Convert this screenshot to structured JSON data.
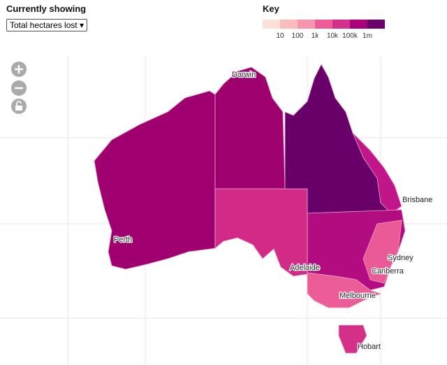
{
  "controls": {
    "label": "Currently showing",
    "select": "Total hectares lost"
  },
  "key": {
    "title": "Key",
    "labels": [
      "10",
      "100",
      "1k",
      "10k",
      "100k",
      "1m"
    ],
    "colors": [
      "#fde0dc",
      "#fbbcbc",
      "#f794ae",
      "#ec5d98",
      "#d4308a",
      "#a9007a",
      "#6b006c"
    ]
  },
  "cities": [
    {
      "name": "Darwin"
    },
    {
      "name": "Brisbane"
    },
    {
      "name": "Perth"
    },
    {
      "name": "Sydney"
    },
    {
      "name": "Adelaide"
    },
    {
      "name": "Canberra"
    },
    {
      "name": "Melbourne"
    },
    {
      "name": "Hobart"
    }
  ]
}
